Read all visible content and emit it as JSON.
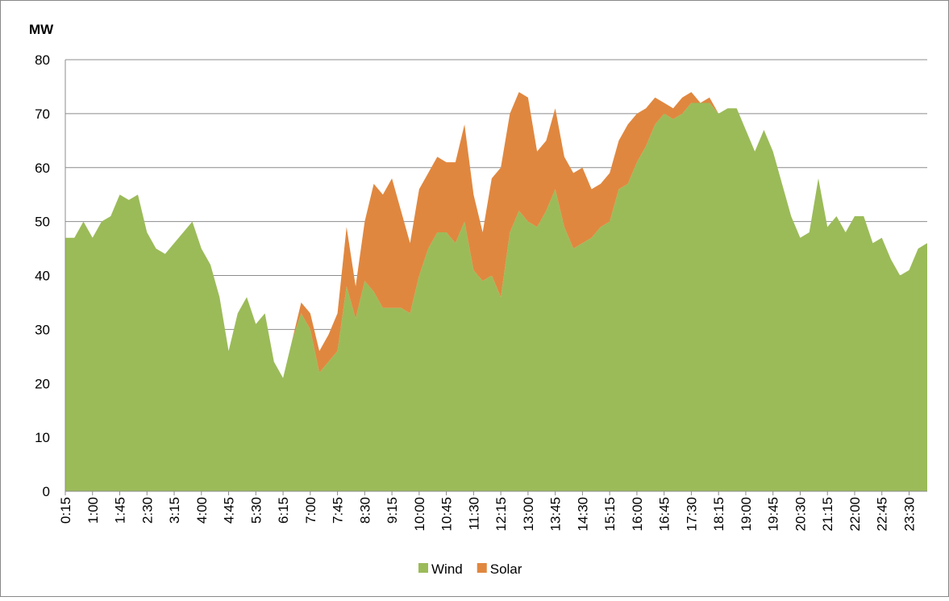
{
  "chart_data": {
    "type": "stacked-area",
    "y_label": "MW",
    "categories": [
      "0:15",
      null,
      null,
      "1:00",
      null,
      null,
      "1:45",
      null,
      null,
      "2:30",
      null,
      null,
      "3:15",
      null,
      null,
      "4:00",
      null,
      null,
      "4:45",
      null,
      null,
      "5:30",
      null,
      null,
      "6:15",
      null,
      null,
      "7:00",
      null,
      null,
      "7:45",
      null,
      null,
      "8:30",
      null,
      null,
      "9:15",
      null,
      null,
      "10:00",
      null,
      null,
      "10:45",
      null,
      null,
      "11:30",
      null,
      null,
      "12:15",
      null,
      null,
      "13:00",
      null,
      null,
      "13:45",
      null,
      null,
      "14:30",
      null,
      null,
      "15:15",
      null,
      null,
      "16:00",
      null,
      null,
      "16:45",
      null,
      null,
      "17:30",
      null,
      null,
      "18:15",
      null,
      null,
      "19:00",
      null,
      null,
      "19:45",
      null,
      null,
      "20:30",
      null,
      null,
      "21:15",
      null,
      null,
      "22:00",
      null,
      null,
      "22:45",
      null,
      null,
      "23:30",
      null,
      null
    ],
    "series": [
      {
        "name": "Wind",
        "color": "#9bbb59",
        "values": [
          47,
          47,
          50,
          47,
          50,
          51,
          55,
          54,
          55,
          48,
          45,
          44,
          46,
          48,
          50,
          45,
          42,
          36,
          26,
          33,
          36,
          31,
          33,
          24,
          21,
          28,
          33,
          30,
          22,
          24,
          26,
          38,
          32,
          39,
          37,
          34,
          34,
          34,
          33,
          40,
          45,
          48,
          48,
          46,
          50,
          41,
          39,
          40,
          36,
          48,
          52,
          50,
          49,
          52,
          56,
          49,
          45,
          46,
          47,
          49,
          50,
          56,
          57,
          61,
          64,
          68,
          70,
          69,
          70,
          72,
          72,
          72,
          70,
          71,
          71,
          67,
          63,
          67,
          63,
          57,
          51,
          47,
          48,
          58,
          49,
          51,
          48,
          51,
          51,
          46,
          47,
          43,
          40,
          41,
          45,
          46
        ]
      },
      {
        "name": "Solar",
        "color": "#e0873f",
        "values": [
          0,
          0,
          0,
          0,
          0,
          0,
          0,
          0,
          0,
          0,
          0,
          0,
          0,
          0,
          0,
          0,
          0,
          0,
          0,
          0,
          0,
          0,
          0,
          0,
          0,
          0,
          2,
          3,
          4,
          5,
          7,
          11,
          6,
          11,
          20,
          21,
          24,
          18,
          13,
          16,
          14,
          14,
          13,
          15,
          18,
          14,
          9,
          18,
          24,
          22,
          22,
          23,
          14,
          13,
          15,
          13,
          14,
          14,
          9,
          8,
          9,
          9,
          11,
          9,
          7,
          5,
          2,
          2,
          3,
          2,
          0,
          1,
          0,
          0,
          0,
          0,
          0,
          0,
          0,
          0,
          0,
          0,
          0,
          0,
          0,
          0,
          0,
          0,
          0,
          0,
          0,
          0,
          0,
          0,
          0,
          0
        ]
      }
    ],
    "ylim": [
      0,
      80
    ],
    "yticks": [
      0,
      10,
      20,
      30,
      40,
      50,
      60,
      70,
      80
    ],
    "grid": true,
    "legend": "bottom"
  }
}
